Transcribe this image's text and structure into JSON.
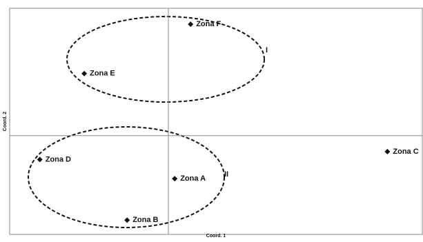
{
  "chart_data": {
    "type": "scatter",
    "x_label": "Coord. 1",
    "y_label": "Coord. 2",
    "point_labels": [
      "Zona A",
      "Zona B",
      "Zona C",
      "Zona D",
      "Zona E",
      "Zona F"
    ],
    "x": [
      0.04,
      -0.26,
      1.38,
      -0.81,
      -0.53,
      0.14
    ],
    "values": [
      -0.27,
      -0.53,
      -0.1,
      -0.15,
      0.39,
      0.7
    ],
    "color": "#111111",
    "xlim": [
      -1,
      1.6
    ],
    "ylim": [
      -0.62,
      0.8
    ],
    "annotations": [
      "I",
      "II"
    ]
  }
}
